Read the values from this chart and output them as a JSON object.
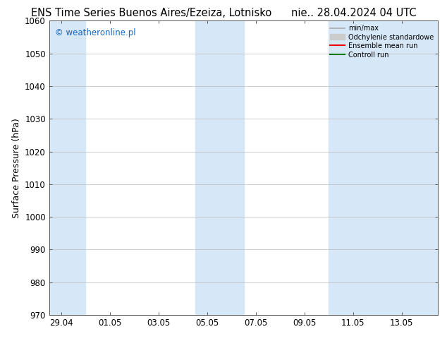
{
  "title": "ENS Time Series Buenos Aires/Ezeiza, Lotnisko",
  "title_right": "nie.. 28.04.2024 04 UTC",
  "ylabel": "Surface Pressure (hPa)",
  "ylim": [
    970,
    1060
  ],
  "yticks": [
    970,
    980,
    990,
    1000,
    1010,
    1020,
    1030,
    1040,
    1050,
    1060
  ],
  "xtick_labels": [
    "29.04",
    "01.05",
    "03.05",
    "05.05",
    "07.05",
    "09.05",
    "11.05",
    "13.05"
  ],
  "xtick_positions": [
    0,
    2,
    4,
    6,
    8,
    10,
    12,
    14
  ],
  "xlim": [
    -0.5,
    15.5
  ],
  "shaded_bands": [
    {
      "x_start": -0.5,
      "x_end": 1.0,
      "color": "#d6e8f7"
    },
    {
      "x_start": 5.5,
      "x_end": 7.5,
      "color": "#d6e8f7"
    },
    {
      "x_start": 11.0,
      "x_end": 15.5,
      "color": "#d6e8f7"
    }
  ],
  "background_color": "#ffffff",
  "plot_bg_color": "#ffffff",
  "grid_color": "#bbbbbb",
  "watermark_text": "© weatheronline.pl",
  "watermark_color": "#1565c0",
  "legend_entries": [
    {
      "label": "min/max",
      "color": "#aaaaaa",
      "linewidth": 1.2,
      "linestyle": "-",
      "type": "line"
    },
    {
      "label": "Odchylenie standardowe",
      "color": "#cccccc",
      "linewidth": 7,
      "linestyle": "-",
      "type": "patch"
    },
    {
      "label": "Ensemble mean run",
      "color": "#ee0000",
      "linewidth": 1.5,
      "linestyle": "-",
      "type": "line"
    },
    {
      "label": "Controll run",
      "color": "#007700",
      "linewidth": 1.5,
      "linestyle": "-",
      "type": "line"
    }
  ],
  "title_fontsize": 10.5,
  "tick_fontsize": 8.5,
  "ylabel_fontsize": 9,
  "watermark_fontsize": 8.5
}
